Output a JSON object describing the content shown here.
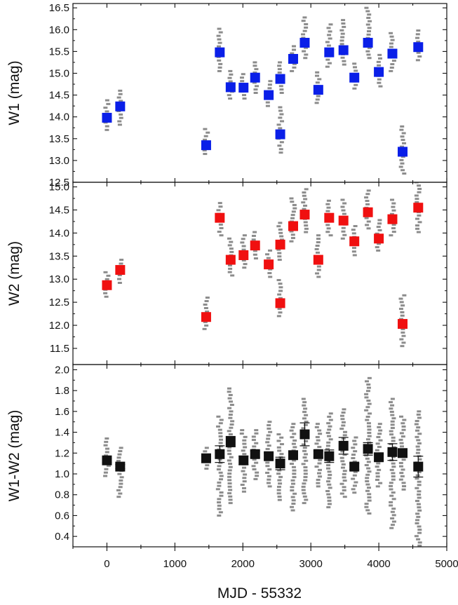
{
  "chart_data": [
    {
      "type": "scatter",
      "panel": "top",
      "ylabel": "W1 (mag)",
      "xlabel": "",
      "xlim": [
        -500,
        5000
      ],
      "ylim": [
        12.5,
        16.6
      ],
      "yticks": [
        "12.5",
        "13.0",
        "13.5",
        "14.0",
        "14.5",
        "15.0",
        "15.5",
        "16.0",
        "16.5"
      ],
      "marker_color": "#0a1fe8",
      "scatter_color": "#8c8c8c",
      "points": [
        {
          "x": 0,
          "y": 13.98,
          "lo": 13.7,
          "hi": 14.38
        },
        {
          "x": 195,
          "y": 14.24,
          "lo": 13.82,
          "hi": 14.6
        },
        {
          "x": 1460,
          "y": 13.35,
          "lo": 13.15,
          "hi": 13.72
        },
        {
          "x": 1660,
          "y": 15.48,
          "lo": 15.05,
          "hi": 16.02
        },
        {
          "x": 1820,
          "y": 14.68,
          "lo": 14.42,
          "hi": 15.05
        },
        {
          "x": 2010,
          "y": 14.67,
          "lo": 14.42,
          "hi": 14.98
        },
        {
          "x": 2180,
          "y": 14.9,
          "lo": 14.55,
          "hi": 15.25
        },
        {
          "x": 2380,
          "y": 14.5,
          "lo": 14.25,
          "hi": 14.82
        },
        {
          "x": 2550,
          "y": 14.87,
          "lo": 14.55,
          "hi": 15.25
        },
        {
          "x": 2550,
          "y": 13.6,
          "lo": 13.18,
          "hi": 14.22
        },
        {
          "x": 2740,
          "y": 15.33,
          "lo": 15.05,
          "hi": 15.62
        },
        {
          "x": 2910,
          "y": 15.7,
          "lo": 15.35,
          "hi": 16.28
        },
        {
          "x": 3110,
          "y": 14.62,
          "lo": 14.32,
          "hi": 15.02
        },
        {
          "x": 3270,
          "y": 15.48,
          "lo": 15.15,
          "hi": 16.12
        },
        {
          "x": 3480,
          "y": 15.53,
          "lo": 15.2,
          "hi": 16.22
        },
        {
          "x": 3640,
          "y": 14.9,
          "lo": 14.65,
          "hi": 15.22
        },
        {
          "x": 3840,
          "y": 15.7,
          "lo": 15.35,
          "hi": 16.5
        },
        {
          "x": 4000,
          "y": 15.03,
          "lo": 14.7,
          "hi": 15.42
        },
        {
          "x": 4200,
          "y": 15.45,
          "lo": 15.05,
          "hi": 15.92
        },
        {
          "x": 4350,
          "y": 13.2,
          "lo": 12.7,
          "hi": 13.78
        },
        {
          "x": 4580,
          "y": 15.6,
          "lo": 15.3,
          "hi": 15.98
        }
      ]
    },
    {
      "type": "scatter",
      "panel": "middle",
      "ylabel": "W2 (mag)",
      "xlabel": "",
      "xlim": [
        -500,
        5000
      ],
      "ylim": [
        11.15,
        15.1
      ],
      "yticks": [
        "11.5",
        "12.0",
        "12.5",
        "13.0",
        "13.5",
        "14.0",
        "14.5",
        "15.0"
      ],
      "marker_color": "#f01010",
      "scatter_color": "#8c8c8c",
      "points": [
        {
          "x": 0,
          "y": 12.87,
          "lo": 12.62,
          "hi": 13.15
        },
        {
          "x": 195,
          "y": 13.2,
          "lo": 12.92,
          "hi": 13.42
        },
        {
          "x": 1460,
          "y": 12.18,
          "lo": 11.92,
          "hi": 12.6
        },
        {
          "x": 1660,
          "y": 14.33,
          "lo": 13.95,
          "hi": 14.65
        },
        {
          "x": 1820,
          "y": 13.42,
          "lo": 13.08,
          "hi": 13.88
        },
        {
          "x": 2010,
          "y": 13.52,
          "lo": 13.25,
          "hi": 13.95
        },
        {
          "x": 2180,
          "y": 13.73,
          "lo": 13.45,
          "hi": 14.02
        },
        {
          "x": 2380,
          "y": 13.32,
          "lo": 13.05,
          "hi": 13.62
        },
        {
          "x": 2550,
          "y": 13.75,
          "lo": 13.42,
          "hi": 14.22
        },
        {
          "x": 2550,
          "y": 12.48,
          "lo": 12.2,
          "hi": 12.98
        },
        {
          "x": 2740,
          "y": 14.15,
          "lo": 13.82,
          "hi": 14.75
        },
        {
          "x": 2910,
          "y": 14.4,
          "lo": 14.02,
          "hi": 14.95
        },
        {
          "x": 3110,
          "y": 13.42,
          "lo": 13.05,
          "hi": 13.95
        },
        {
          "x": 3270,
          "y": 14.33,
          "lo": 13.95,
          "hi": 14.7
        },
        {
          "x": 3480,
          "y": 14.27,
          "lo": 13.88,
          "hi": 14.72
        },
        {
          "x": 3640,
          "y": 13.82,
          "lo": 13.52,
          "hi": 14.15
        },
        {
          "x": 3840,
          "y": 14.45,
          "lo": 14.1,
          "hi": 14.92
        },
        {
          "x": 4000,
          "y": 13.88,
          "lo": 13.62,
          "hi": 14.28
        },
        {
          "x": 4200,
          "y": 14.3,
          "lo": 13.95,
          "hi": 14.72
        },
        {
          "x": 4350,
          "y": 12.03,
          "lo": 11.55,
          "hi": 12.65
        },
        {
          "x": 4580,
          "y": 14.55,
          "lo": 14.02,
          "hi": 15.1
        }
      ]
    },
    {
      "type": "scatter",
      "panel": "bottom",
      "ylabel": "W1-W2 (mag)",
      "xlabel": "MJD - 55332",
      "xlim": [
        -500,
        5000
      ],
      "ylim": [
        0.3,
        2.05
      ],
      "yticks": [
        "0.4",
        "0.6",
        "0.8",
        "1.0",
        "1.2",
        "1.4",
        "1.6",
        "1.8",
        "2.0"
      ],
      "xticks": [
        "0",
        "1000",
        "2000",
        "3000",
        "4000",
        "5000"
      ],
      "marker_color": "#111111",
      "scatter_color": "#8c8c8c",
      "points": [
        {
          "x": 0,
          "y": 1.13,
          "err": 0.02,
          "lo": 0.98,
          "hi": 1.34
        },
        {
          "x": 195,
          "y": 1.07,
          "err": 0.02,
          "lo": 0.78,
          "hi": 1.25
        },
        {
          "x": 1460,
          "y": 1.15,
          "err": 0.02,
          "lo": 1.05,
          "hi": 1.25
        },
        {
          "x": 1660,
          "y": 1.19,
          "err": 0.08,
          "lo": 0.6,
          "hi": 1.55
        },
        {
          "x": 1820,
          "y": 1.31,
          "err": 0.05,
          "lo": 0.72,
          "hi": 1.82
        },
        {
          "x": 2010,
          "y": 1.13,
          "err": 0.04,
          "lo": 0.83,
          "hi": 1.42
        },
        {
          "x": 2180,
          "y": 1.19,
          "err": 0.03,
          "lo": 0.95,
          "hi": 1.42
        },
        {
          "x": 2380,
          "y": 1.17,
          "err": 0.03,
          "lo": 0.88,
          "hi": 1.5
        },
        {
          "x": 2550,
          "y": 1.1,
          "err": 0.06,
          "lo": 0.75,
          "hi": 1.38
        },
        {
          "x": 2740,
          "y": 1.18,
          "err": 0.04,
          "lo": 0.65,
          "hi": 1.48
        },
        {
          "x": 2910,
          "y": 1.38,
          "err": 0.11,
          "lo": 0.72,
          "hi": 1.72
        },
        {
          "x": 3110,
          "y": 1.19,
          "err": 0.03,
          "lo": 0.88,
          "hi": 1.48
        },
        {
          "x": 3270,
          "y": 1.17,
          "err": 0.06,
          "lo": 0.68,
          "hi": 1.58
        },
        {
          "x": 3480,
          "y": 1.27,
          "err": 0.08,
          "lo": 0.78,
          "hi": 1.62
        },
        {
          "x": 3640,
          "y": 1.07,
          "err": 0.03,
          "lo": 0.82,
          "hi": 1.35
        },
        {
          "x": 3840,
          "y": 1.24,
          "err": 0.06,
          "lo": 0.62,
          "hi": 1.92
        },
        {
          "x": 4000,
          "y": 1.16,
          "err": 0.03,
          "lo": 0.88,
          "hi": 1.48
        },
        {
          "x": 4200,
          "y": 1.21,
          "err": 0.08,
          "lo": 0.48,
          "hi": 1.72
        },
        {
          "x": 4350,
          "y": 1.2,
          "err": 0.04,
          "lo": 0.85,
          "hi": 1.55
        },
        {
          "x": 4580,
          "y": 1.07,
          "err": 0.1,
          "lo": 0.28,
          "hi": 1.6
        }
      ]
    }
  ]
}
